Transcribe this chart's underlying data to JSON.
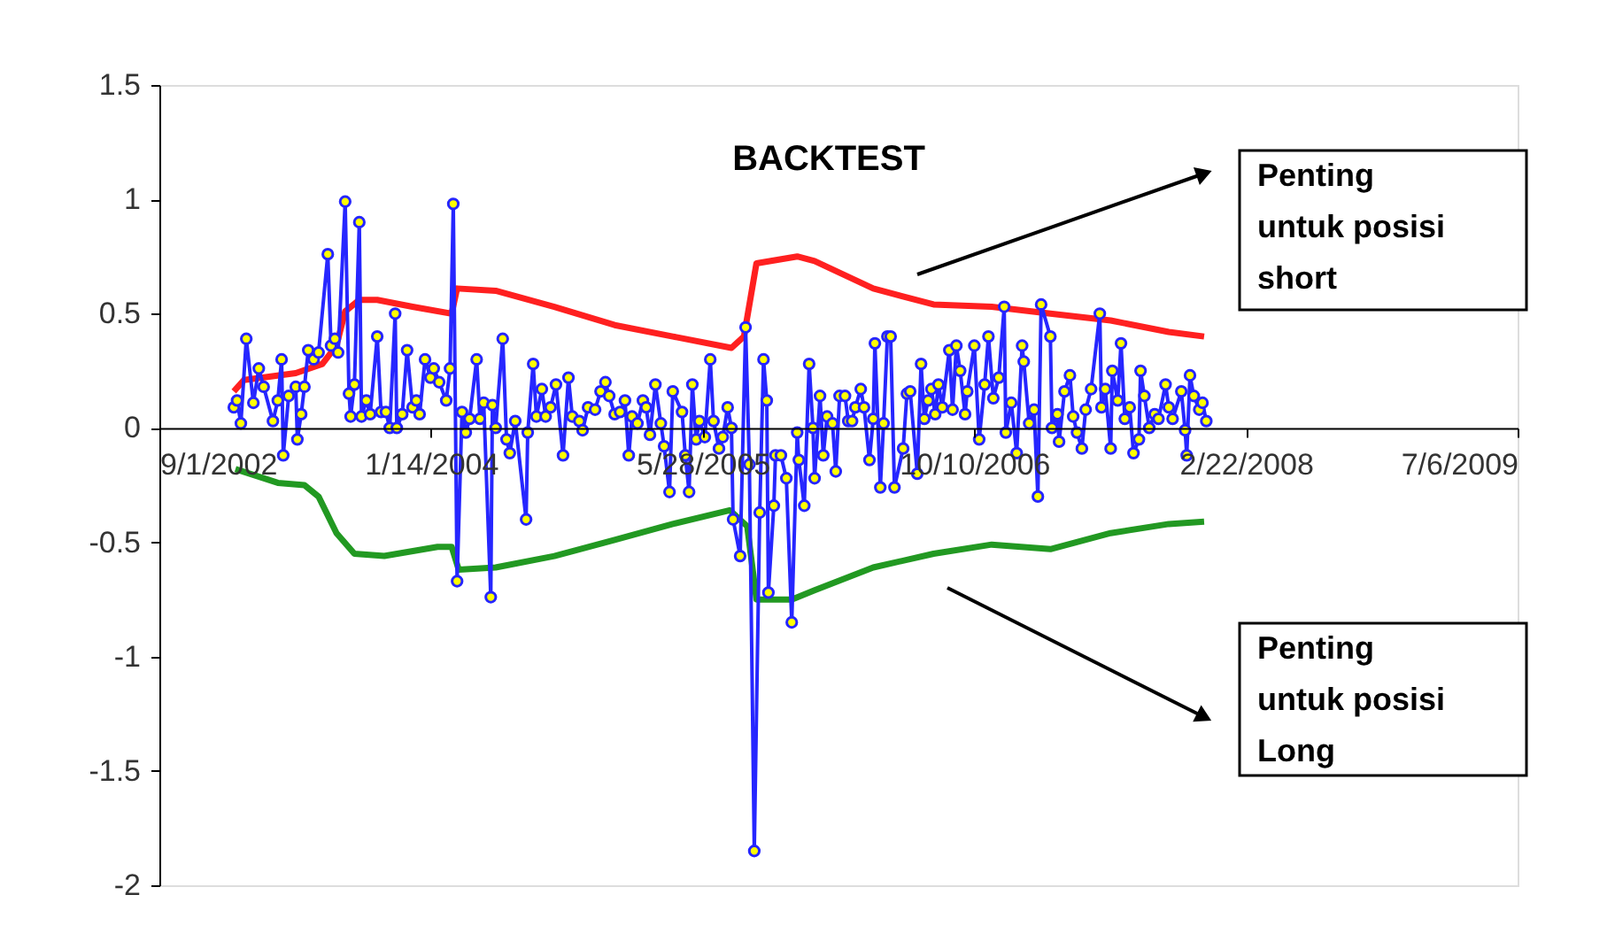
{
  "chart_data": {
    "type": "line",
    "title": "BACKTEST",
    "xlim": [
      "2002-09-01",
      "2009-07-06"
    ],
    "xticks": [
      {
        "value": "2002-09-01",
        "label": "9/1/2002"
      },
      {
        "value": "2004-01-14",
        "label": "1/14/2004"
      },
      {
        "value": "2005-05-28",
        "label": "5/28/2005"
      },
      {
        "value": "2006-10-10",
        "label": "10/10/2006"
      },
      {
        "value": "2008-02-22",
        "label": "2/22/2008"
      },
      {
        "value": "2009-07-06",
        "label": "7/6/2009"
      }
    ],
    "ylim": [
      -2,
      1.5
    ],
    "yticks": [
      -2,
      -1.5,
      -1,
      -0.5,
      0,
      0.5,
      1,
      1.5
    ],
    "grid": false,
    "annotations": [
      "Penting\nuntuk posisi\nshort",
      "Penting\nuntuk posisi\nLong"
    ],
    "series": [
      {
        "color": "#ff2020",
        "marker": "none",
        "x": [
          "2003-01-16",
          "2003-02-04",
          "2003-05-10",
          "2003-06-28",
          "2003-07-24",
          "2003-08-09",
          "2003-09-04",
          "2003-10-07",
          "2003-12-11",
          "2004-02-21",
          "2004-03-02",
          "2004-05-12",
          "2004-08-28",
          "2004-12-17",
          "2005-04-03",
          "2005-07-20",
          "2005-08-12",
          "2005-09-04",
          "2005-11-18",
          "2005-12-20",
          "2006-04-07",
          "2006-07-27",
          "2006-11-11",
          "2007-02-27",
          "2007-06-18",
          "2007-10-03",
          "2007-12-07"
        ],
        "values": [
          0.16,
          0.21,
          0.24,
          0.28,
          0.36,
          0.51,
          0.56,
          0.56,
          0.53,
          0.5,
          0.61,
          0.6,
          0.53,
          0.45,
          0.4,
          0.35,
          0.4,
          0.72,
          0.75,
          0.73,
          0.61,
          0.54,
          0.53,
          0.5,
          0.47,
          0.42,
          0.4
        ]
      },
      {
        "color": "#229922",
        "marker": "none",
        "x": [
          "2003-01-19",
          "2003-04-07",
          "2003-05-26",
          "2003-06-21",
          "2003-07-24",
          "2003-08-26",
          "2003-10-20",
          "2004-01-26",
          "2004-02-21",
          "2004-03-05",
          "2004-05-12",
          "2004-08-28",
          "2004-12-17",
          "2005-04-03",
          "2005-07-17",
          "2005-08-18",
          "2005-09-04",
          "2005-11-08",
          "2005-12-20",
          "2006-02-23",
          "2006-04-07",
          "2006-07-27",
          "2006-11-11",
          "2007-02-27",
          "2007-06-18",
          "2007-10-03",
          "2007-12-07"
        ],
        "values": [
          -0.18,
          -0.24,
          -0.25,
          -0.3,
          -0.46,
          -0.55,
          -0.56,
          -0.52,
          -0.52,
          -0.62,
          -0.61,
          -0.56,
          -0.49,
          -0.42,
          -0.36,
          -0.43,
          -0.75,
          -0.75,
          -0.71,
          -0.65,
          -0.61,
          -0.55,
          -0.51,
          -0.53,
          -0.46,
          -0.42,
          -0.41
        ]
      },
      {
        "color": "#2626ff",
        "marker": "circle",
        "x": [
          "2003-01-16",
          "2003-01-22",
          "2003-01-29",
          "2003-02-08",
          "2003-02-21",
          "2003-03-03",
          "2003-03-12",
          "2003-03-29",
          "2003-04-07",
          "2003-04-14",
          "2003-04-17",
          "2003-04-27",
          "2003-05-10",
          "2003-05-13",
          "2003-05-20",
          "2003-05-26",
          "2003-06-02",
          "2003-06-12",
          "2003-06-21",
          "2003-07-08",
          "2003-07-14",
          "2003-07-21",
          "2003-07-27",
          "2003-08-09",
          "2003-08-16",
          "2003-08-19",
          "2003-08-26",
          "2003-09-04",
          "2003-09-08",
          "2003-09-17",
          "2003-09-24",
          "2003-10-07",
          "2003-10-14",
          "2003-10-23",
          "2003-10-30",
          "2003-11-09",
          "2003-11-12",
          "2003-11-22",
          "2003-12-01",
          "2003-12-11",
          "2003-12-18",
          "2003-12-24",
          "2004-01-03",
          "2004-01-13",
          "2004-01-19",
          "2004-01-29",
          "2004-02-11",
          "2004-02-18",
          "2004-02-24",
          "2004-03-02",
          "2004-03-11",
          "2004-03-18",
          "2004-03-25",
          "2004-04-07",
          "2004-04-13",
          "2004-04-20",
          "2004-05-03",
          "2004-05-06",
          "2004-05-12",
          "2004-05-25",
          "2004-06-01",
          "2004-06-07",
          "2004-06-17",
          "2004-07-07",
          "2004-07-10",
          "2004-07-20",
          "2004-07-26",
          "2004-08-05",
          "2004-08-12",
          "2004-08-21",
          "2004-08-31",
          "2004-09-13",
          "2004-09-23",
          "2004-09-30",
          "2004-10-13",
          "2004-10-19",
          "2004-10-29",
          "2004-11-11",
          "2004-11-21",
          "2004-11-30",
          "2004-12-07",
          "2004-12-17",
          "2004-12-27",
          "2005-01-05",
          "2005-01-12",
          "2005-01-18",
          "2005-01-28",
          "2005-02-07",
          "2005-02-13",
          "2005-02-20",
          "2005-03-02",
          "2005-03-12",
          "2005-03-18",
          "2005-03-28",
          "2005-04-03",
          "2005-04-20",
          "2005-04-26",
          "2005-05-03",
          "2005-05-09",
          "2005-05-16",
          "2005-05-22",
          "2005-06-01",
          "2005-06-11",
          "2005-06-17",
          "2005-06-27",
          "2005-07-04",
          "2005-07-13",
          "2005-07-20",
          "2005-07-23",
          "2005-08-05",
          "2005-08-15",
          "2005-08-22",
          "2005-08-31",
          "2005-09-10",
          "2005-09-17",
          "2005-09-23",
          "2005-09-26",
          "2005-10-06",
          "2005-10-09",
          "2005-10-19",
          "2005-10-29",
          "2005-11-08",
          "2005-11-18",
          "2005-11-21",
          "2005-12-01",
          "2005-12-10",
          "2005-12-17",
          "2005-12-20",
          "2005-12-30",
          "2006-01-05",
          "2006-01-12",
          "2006-01-22",
          "2006-01-28",
          "2006-02-04",
          "2006-02-14",
          "2006-02-20",
          "2006-02-27",
          "2006-03-05",
          "2006-03-15",
          "2006-03-21",
          "2006-03-31",
          "2006-04-07",
          "2006-04-10",
          "2006-04-20",
          "2006-04-26",
          "2006-05-03",
          "2006-05-09",
          "2006-05-16",
          "2006-06-01",
          "2006-06-08",
          "2006-06-14",
          "2006-06-27",
          "2006-07-04",
          "2006-07-10",
          "2006-07-17",
          "2006-07-23",
          "2006-07-30",
          "2006-08-05",
          "2006-08-12",
          "2006-08-25",
          "2006-08-31",
          "2006-09-07",
          "2006-09-14",
          "2006-09-23",
          "2006-09-27",
          "2006-10-10",
          "2006-10-19",
          "2006-10-29",
          "2006-11-05",
          "2006-11-14",
          "2006-11-24",
          "2006-12-04",
          "2006-12-07",
          "2006-12-17",
          "2006-12-27",
          "2007-01-06",
          "2007-01-09",
          "2007-01-19",
          "2007-01-28",
          "2007-02-04",
          "2007-02-10",
          "2007-02-27",
          "2007-03-02",
          "2007-03-12",
          "2007-03-15",
          "2007-03-25",
          "2007-04-04",
          "2007-04-10",
          "2007-04-17",
          "2007-04-26",
          "2007-05-03",
          "2007-05-13",
          "2007-05-29",
          "2007-06-01",
          "2007-06-08",
          "2007-06-18",
          "2007-06-21",
          "2007-07-01",
          "2007-07-07",
          "2007-07-14",
          "2007-07-23",
          "2007-07-30",
          "2007-08-09",
          "2007-08-12",
          "2007-08-19",
          "2007-08-28",
          "2007-09-07",
          "2007-09-14",
          "2007-09-27",
          "2007-10-03",
          "2007-10-10",
          "2007-10-26",
          "2007-11-02",
          "2007-11-05",
          "2007-11-11",
          "2007-11-18",
          "2007-11-28",
          "2007-12-04",
          "2007-12-11"
        ],
        "values": [
          0.09,
          0.12,
          0.02,
          0.39,
          0.11,
          0.26,
          0.18,
          0.03,
          0.12,
          0.3,
          -0.12,
          0.14,
          0.18,
          -0.05,
          0.06,
          0.18,
          0.34,
          0.3,
          0.33,
          0.76,
          0.36,
          0.39,
          0.33,
          0.99,
          0.15,
          0.05,
          0.19,
          0.9,
          0.05,
          0.12,
          0.06,
          0.4,
          0.07,
          0.07,
          0.0,
          0.5,
          0.0,
          0.06,
          0.34,
          0.09,
          0.12,
          0.06,
          0.3,
          0.22,
          0.26,
          0.2,
          0.12,
          0.26,
          0.98,
          -0.67,
          0.07,
          -0.02,
          0.04,
          0.3,
          0.04,
          0.11,
          -0.74,
          0.1,
          0.0,
          0.39,
          -0.05,
          -0.11,
          0.03,
          -0.4,
          -0.02,
          0.28,
          0.05,
          0.17,
          0.05,
          0.09,
          0.19,
          -0.12,
          0.22,
          0.05,
          0.03,
          -0.01,
          0.09,
          0.08,
          0.16,
          0.2,
          0.14,
          0.06,
          0.07,
          0.12,
          -0.12,
          0.05,
          0.02,
          0.12,
          0.09,
          -0.03,
          0.19,
          0.02,
          -0.08,
          -0.28,
          0.16,
          0.07,
          -0.12,
          -0.28,
          0.19,
          -0.05,
          0.03,
          -0.04,
          0.3,
          0.03,
          -0.09,
          -0.04,
          0.09,
          0.0,
          -0.4,
          -0.56,
          0.44,
          -0.16,
          -1.85,
          -0.37,
          0.3,
          0.12,
          -0.72,
          -0.34,
          -0.12,
          -0.12,
          -0.22,
          -0.85,
          -0.02,
          -0.14,
          -0.34,
          0.28,
          0.0,
          -0.22,
          0.14,
          -0.12,
          0.05,
          0.02,
          -0.19,
          0.14,
          0.14,
          0.03,
          0.03,
          0.09,
          0.17,
          0.09,
          -0.14,
          0.04,
          0.37,
          -0.26,
          0.02,
          0.4,
          0.4,
          -0.26,
          -0.09,
          0.15,
          0.16,
          -0.2,
          0.28,
          0.04,
          0.12,
          0.17,
          0.06,
          0.19,
          0.09,
          0.34,
          0.08,
          0.36,
          0.25,
          0.06,
          0.16,
          0.36,
          -0.05,
          0.19,
          0.4,
          0.13,
          0.22,
          0.53,
          -0.02,
          0.11,
          -0.11,
          0.36,
          0.29,
          0.02,
          0.08,
          -0.3,
          0.54,
          0.4,
          0.0,
          0.06,
          -0.06,
          0.16,
          0.23,
          0.05,
          -0.02,
          -0.09,
          0.08,
          0.17,
          0.5,
          0.09,
          0.17,
          -0.09,
          0.25,
          0.12,
          0.37,
          0.04,
          0.09,
          -0.11,
          -0.05,
          0.25,
          0.14,
          0.0,
          0.06,
          0.04,
          0.19,
          0.09,
          0.04,
          0.16,
          -0.01,
          -0.12,
          0.23,
          0.14,
          0.08,
          0.11,
          0.03
        ]
      }
    ]
  }
}
